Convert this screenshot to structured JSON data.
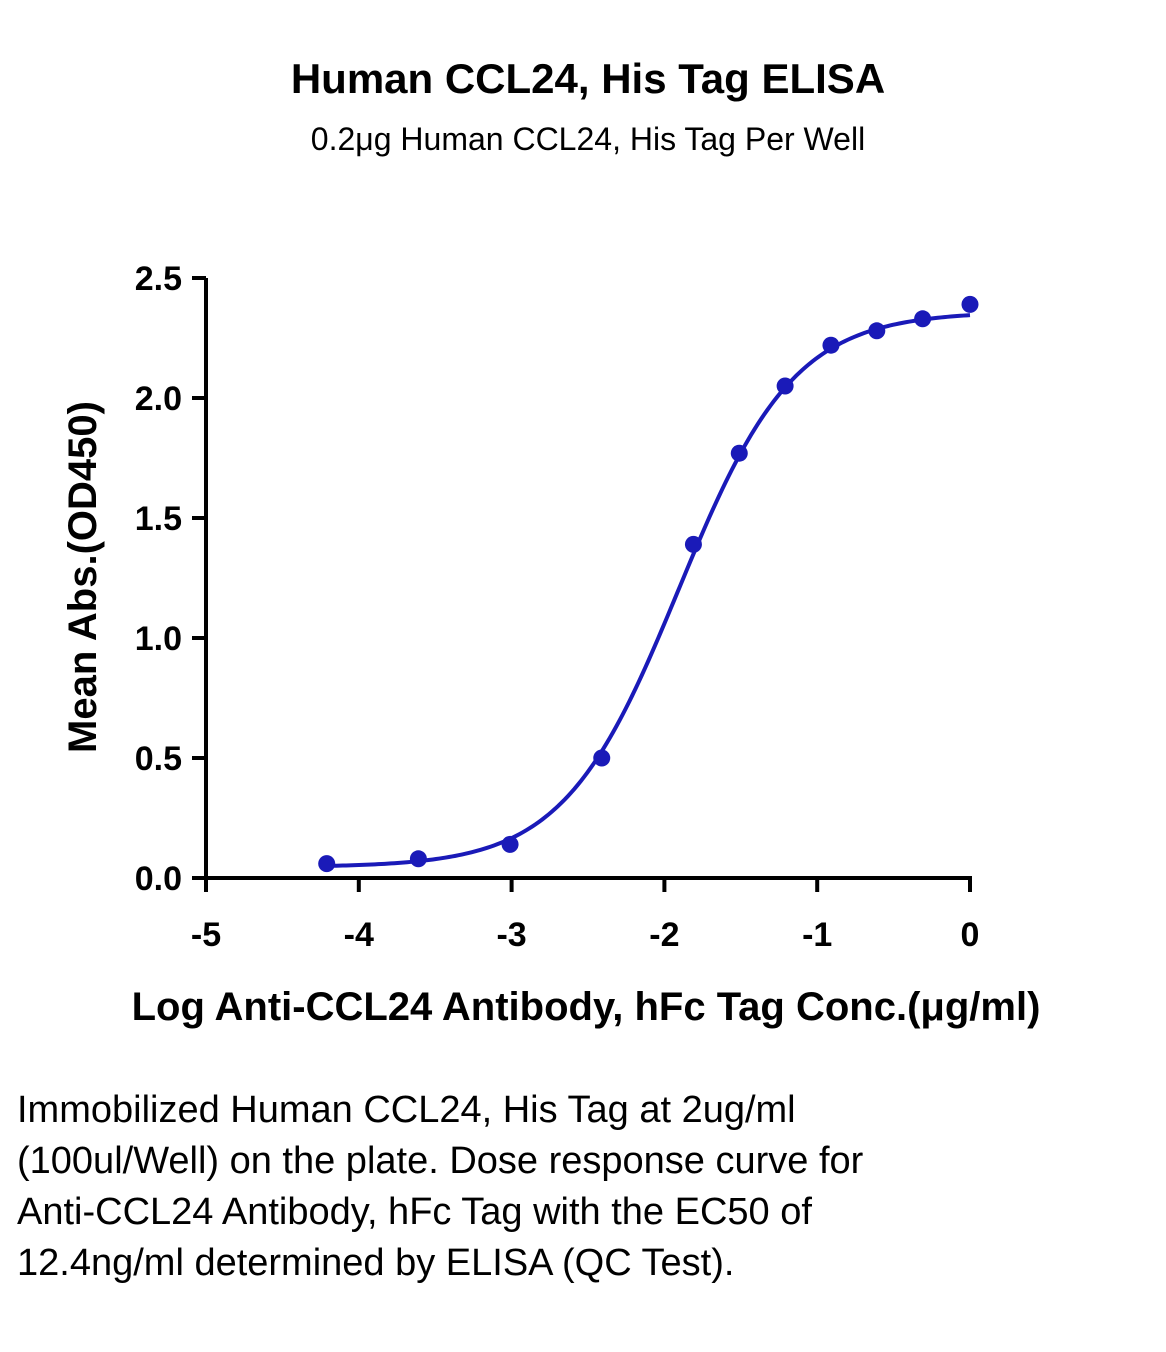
{
  "chart_data": {
    "type": "scatter",
    "title": "Human CCL24, His Tag ELISA",
    "subtitle": "0.2μg Human CCL24, His Tag Per Well",
    "xlabel": "Log Anti-CCL24 Antibody, hFc Tag Conc.(μg/ml)",
    "ylabel": "Mean Abs.(OD450)",
    "xlim": [
      -5,
      0
    ],
    "ylim": [
      0,
      2.5
    ],
    "x_ticks": [
      "-5",
      "-4",
      "-3",
      "-2",
      "-1",
      "0"
    ],
    "y_ticks": [
      "0.0",
      "0.5",
      "1.0",
      "1.5",
      "2.0",
      "2.5"
    ],
    "grid": false,
    "color": "#1a1ab8",
    "series": [
      {
        "x": [
          -4.21,
          -3.61,
          -3.01,
          -2.41,
          -1.81,
          -1.51,
          -1.21,
          -0.91,
          -0.61,
          -0.31,
          0.0
        ],
        "y": [
          0.06,
          0.08,
          0.14,
          0.5,
          1.39,
          1.77,
          2.05,
          2.22,
          2.28,
          2.33,
          2.39
        ],
        "fit": "four-parameter logistic"
      }
    ]
  },
  "caption": "Immobilized Human CCL24, His Tag at 2ug/ml (100ul/Well) on the plate. Dose response curve for Anti-CCL24 Antibody, hFc Tag with the EC50 of 12.4ng/ml determined by ELISA (QC Test)."
}
